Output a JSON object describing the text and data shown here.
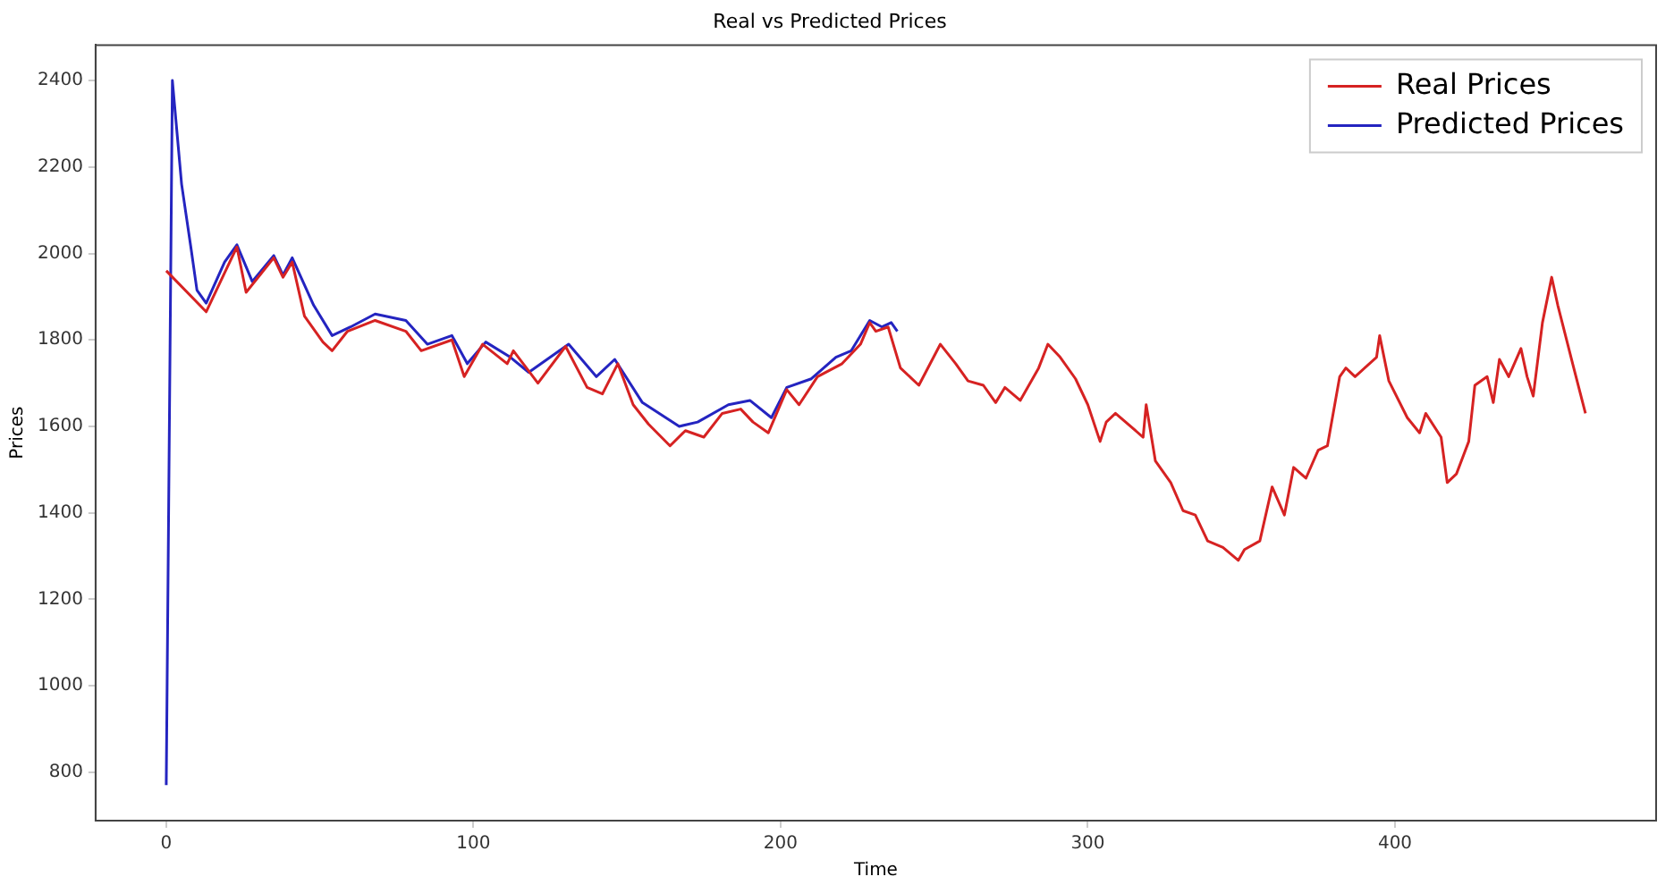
{
  "chart_data": {
    "type": "line",
    "title": "Real vs Predicted Prices",
    "xlabel": "Time",
    "ylabel": "Prices",
    "xlim": [
      -23,
      485
    ],
    "ylim": [
      688,
      2482
    ],
    "xticks": [
      0,
      100,
      200,
      300,
      400
    ],
    "yticks": [
      800,
      1000,
      1200,
      1400,
      1600,
      1800,
      2000,
      2200,
      2400
    ],
    "grid": false,
    "legend": "top right",
    "marker": "none",
    "line_style": "solid",
    "series": [
      {
        "name": "Real Prices",
        "color": "#d62222",
        "x": [
          0,
          13,
          23,
          26,
          35,
          38,
          41,
          45,
          51,
          54,
          59,
          68,
          78,
          83,
          93,
          97,
          103,
          111,
          113,
          121,
          130,
          137,
          142,
          147,
          152,
          157,
          164,
          169,
          175,
          181,
          187,
          191,
          196,
          202,
          206,
          212,
          220,
          226,
          229,
          231,
          235,
          239,
          245,
          252,
          257,
          261,
          266,
          270,
          273,
          278,
          284,
          287,
          291,
          296,
          300,
          304,
          306,
          309,
          318,
          319,
          322,
          327,
          331,
          335,
          339,
          344,
          349,
          351,
          356,
          360,
          364,
          367,
          371,
          375,
          378,
          382,
          384,
          387,
          394,
          395,
          398,
          404,
          408,
          410,
          415,
          417,
          420,
          424,
          426,
          430,
          432,
          434,
          437,
          441,
          443,
          445,
          448,
          451,
          453,
          458,
          462
        ],
        "values": [
          1960,
          1865,
          2015,
          1910,
          1990,
          1945,
          1980,
          1855,
          1795,
          1775,
          1820,
          1845,
          1820,
          1775,
          1800,
          1715,
          1790,
          1745,
          1775,
          1700,
          1785,
          1690,
          1675,
          1745,
          1650,
          1605,
          1555,
          1590,
          1575,
          1630,
          1640,
          1610,
          1585,
          1685,
          1650,
          1715,
          1745,
          1790,
          1840,
          1820,
          1830,
          1735,
          1695,
          1790,
          1745,
          1705,
          1695,
          1655,
          1690,
          1660,
          1735,
          1790,
          1760,
          1710,
          1650,
          1565,
          1610,
          1630,
          1575,
          1650,
          1520,
          1470,
          1405,
          1395,
          1335,
          1320,
          1290,
          1315,
          1335,
          1460,
          1395,
          1505,
          1480,
          1545,
          1555,
          1715,
          1735,
          1715,
          1760,
          1810,
          1705,
          1620,
          1585,
          1630,
          1575,
          1470,
          1490,
          1565,
          1695,
          1715,
          1655,
          1755,
          1715,
          1780,
          1715,
          1670,
          1840,
          1945,
          1880,
          1740,
          1630
        ]
      },
      {
        "name": "Predicted Prices",
        "color": "#2424c0",
        "x": [
          0,
          2,
          5,
          8,
          10,
          13,
          19,
          23,
          28,
          35,
          38,
          41,
          48,
          54,
          60,
          68,
          78,
          85,
          93,
          98,
          104,
          112,
          118,
          131,
          140,
          146,
          155,
          167,
          173,
          183,
          190,
          197,
          202,
          210,
          218,
          223,
          229,
          233,
          236,
          238
        ],
        "values": [
          770,
          2400,
          2160,
          2015,
          1915,
          1885,
          1980,
          2020,
          1935,
          1995,
          1950,
          1990,
          1880,
          1810,
          1830,
          1860,
          1845,
          1790,
          1810,
          1745,
          1795,
          1760,
          1725,
          1790,
          1715,
          1755,
          1655,
          1600,
          1610,
          1650,
          1660,
          1620,
          1690,
          1710,
          1760,
          1775,
          1845,
          1830,
          1840,
          1820
        ]
      }
    ]
  }
}
